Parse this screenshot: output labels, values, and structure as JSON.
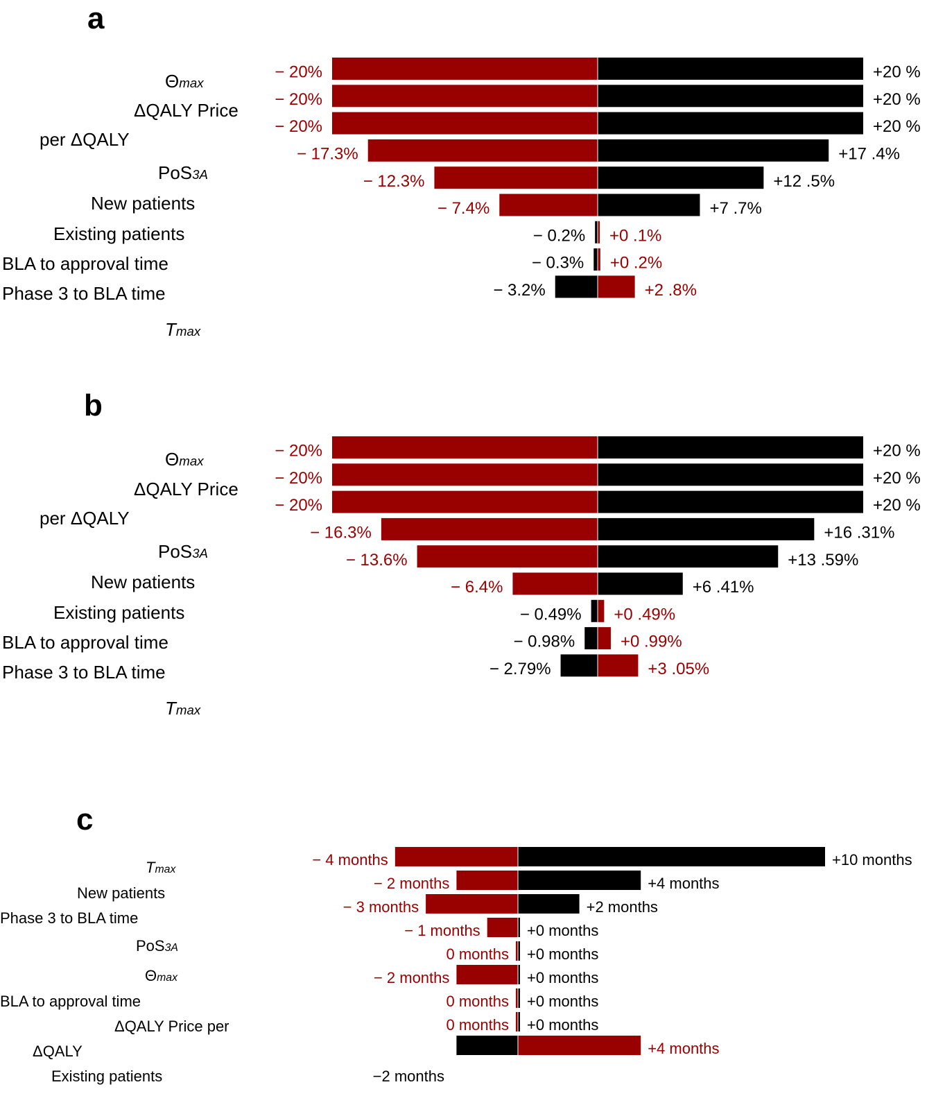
{
  "colors": {
    "red": "#990000",
    "black": "#000000",
    "divider": "#ffffff"
  },
  "chart_data": [
    {
      "panel": "a",
      "type": "bar",
      "orientation": "horizontal-tornado",
      "labels": [
        {
          "main": "Θ",
          "sub": "max",
          "italic_sub": true
        },
        {
          "main": "ΔQALY Price"
        },
        {
          "main": "per ΔQALY"
        },
        {
          "main": "PoS",
          "sub": "3A",
          "italic_sub": true
        },
        {
          "main": "New patients"
        },
        {
          "main": "Existing patients"
        },
        {
          "main": "BLA to approval time"
        },
        {
          "main": "Phase 3 to BLA time"
        },
        {
          "main": "",
          "sub": "T",
          "sub2": "max",
          "italic_sub": true
        }
      ],
      "scale_max": 20,
      "bars": [
        {
          "left": 20,
          "right": 20,
          "left_color": "red",
          "right_color": "black",
          "left_label": "− 20%",
          "right_label": "+20 %"
        },
        {
          "left": 20,
          "right": 20,
          "left_color": "red",
          "right_color": "black",
          "left_label": "− 20%",
          "right_label": "+20 %"
        },
        {
          "left": 20,
          "right": 20,
          "left_color": "red",
          "right_color": "black",
          "left_label": "− 20%",
          "right_label": "+20 %"
        },
        {
          "left": 17.3,
          "right": 17.4,
          "left_color": "red",
          "right_color": "black",
          "left_label": "− 17.3%",
          "right_label": "+17 .4%"
        },
        {
          "left": 12.3,
          "right": 12.5,
          "left_color": "red",
          "right_color": "black",
          "left_label": "− 12.3%",
          "right_label": "+12 .5%"
        },
        {
          "left": 7.4,
          "right": 7.7,
          "left_color": "red",
          "right_color": "black",
          "left_label": "− 7.4%",
          "right_label": "+7 .7%"
        },
        {
          "left": 0.2,
          "right": 0.1,
          "left_color": "black",
          "right_color": "red",
          "left_label": "− 0.2%",
          "right_label": "+0 .1%"
        },
        {
          "left": 0.3,
          "right": 0.2,
          "left_color": "black",
          "right_color": "red",
          "left_label": "− 0.3%",
          "right_label": "+0 .2%"
        },
        {
          "left": 3.2,
          "right": 2.8,
          "left_color": "black",
          "right_color": "red",
          "left_label": "− 3.2%",
          "right_label": "+2 .8%"
        }
      ]
    },
    {
      "panel": "b",
      "type": "bar",
      "orientation": "horizontal-tornado",
      "labels": [
        {
          "main": "Θ",
          "sub": "max",
          "italic_sub": true
        },
        {
          "main": "ΔQALY Price"
        },
        {
          "main": "per ΔQALY"
        },
        {
          "main": "PoS",
          "sub": "3A",
          "italic_sub": true
        },
        {
          "main": "New patients"
        },
        {
          "main": "Existing patients"
        },
        {
          "main": "BLA to approval time"
        },
        {
          "main": "Phase 3 to BLA time"
        },
        {
          "main": "",
          "sub": "T",
          "sub2": "max",
          "italic_sub": true
        }
      ],
      "scale_max": 20,
      "bars": [
        {
          "left": 20,
          "right": 20,
          "left_color": "red",
          "right_color": "black",
          "left_label": "− 20%",
          "right_label": "+20 %"
        },
        {
          "left": 20,
          "right": 20,
          "left_color": "red",
          "right_color": "black",
          "left_label": "− 20%",
          "right_label": "+20 %"
        },
        {
          "left": 20,
          "right": 20,
          "left_color": "red",
          "right_color": "black",
          "left_label": "− 20%",
          "right_label": "+20 %"
        },
        {
          "left": 16.3,
          "right": 16.31,
          "left_color": "red",
          "right_color": "black",
          "left_label": "− 16.3%",
          "right_label": "+16 .31%"
        },
        {
          "left": 13.6,
          "right": 13.59,
          "left_color": "red",
          "right_color": "black",
          "left_label": "− 13.6%",
          "right_label": "+13 .59%"
        },
        {
          "left": 6.4,
          "right": 6.41,
          "left_color": "red",
          "right_color": "black",
          "left_label": "− 6.4%",
          "right_label": "+6 .41%"
        },
        {
          "left": 0.49,
          "right": 0.49,
          "left_color": "black",
          "right_color": "red",
          "left_label": "− 0.49%",
          "right_label": "+0 .49%"
        },
        {
          "left": 0.98,
          "right": 0.99,
          "left_color": "black",
          "right_color": "red",
          "left_label": "− 0.98%",
          "right_label": "+0 .99%"
        },
        {
          "left": 2.79,
          "right": 3.05,
          "left_color": "black",
          "right_color": "red",
          "left_label": "− 2.79%",
          "right_label": "+3 .05%"
        }
      ]
    },
    {
      "panel": "c",
      "type": "bar",
      "orientation": "horizontal-tornado",
      "units": "months",
      "labels": [
        {
          "main": "",
          "sub": "T",
          "sub2": "max",
          "italic_sub": true
        },
        {
          "main": "New patients"
        },
        {
          "main": "Phase 3 to BLA time"
        },
        {
          "main": "PoS",
          "sub": "3A",
          "italic_sub": true
        },
        {
          "main": "Θ",
          "sub": "max",
          "italic_sub": true
        },
        {
          "main": "BLA to approval time"
        },
        {
          "main": "ΔQALY Price per"
        },
        {
          "main": "ΔQALY"
        },
        {
          "main": "Existing patients"
        }
      ],
      "scale_max": 10,
      "bars": [
        {
          "left": 4,
          "right": 10,
          "left_color": "red",
          "right_color": "black",
          "left_label": "− 4 months",
          "right_label": "+10  months"
        },
        {
          "left": 2,
          "right": 4,
          "left_color": "red",
          "right_color": "black",
          "left_label": "− 2 months",
          "right_label": "+4  months"
        },
        {
          "left": 3,
          "right": 2,
          "left_color": "red",
          "right_color": "black",
          "left_label": "− 3 months",
          "right_label": "+2  months"
        },
        {
          "left": 1,
          "right": 0.05,
          "left_color": "red",
          "right_color": "black",
          "left_label": "− 1 months",
          "right_label": "+0  months"
        },
        {
          "left": 0.05,
          "right": 0.05,
          "left_color": "red",
          "right_color": "black",
          "left_label": "0 months",
          "right_label": "+0  months"
        },
        {
          "left": 2,
          "right": 0.05,
          "left_color": "red",
          "right_color": "black",
          "left_label": "− 2 months",
          "right_label": "+0  months"
        },
        {
          "left": 0.05,
          "right": 0.05,
          "left_color": "red",
          "right_color": "black",
          "left_label": "0 months",
          "right_label": "+0  months"
        },
        {
          "left": 0.05,
          "right": 0.05,
          "left_color": "red",
          "right_color": "black",
          "left_label": "0 months",
          "right_label": "+0  months"
        },
        {
          "left": 2,
          "right": 4,
          "left_color": "black",
          "right_color": "red",
          "left_label": "−2 months",
          "right_label": "+4  months"
        }
      ]
    }
  ]
}
